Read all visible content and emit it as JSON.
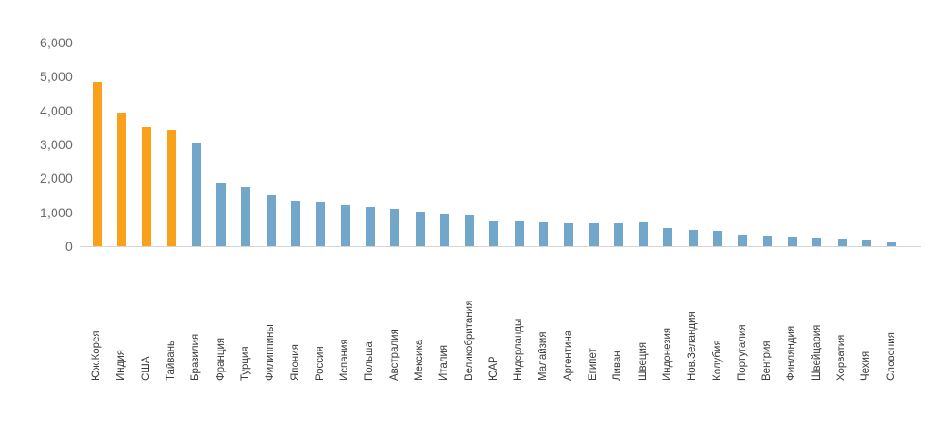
{
  "chart_data": {
    "type": "bar",
    "title": "",
    "xlabel": "",
    "ylabel": "",
    "categories": [
      "Юж.Корея",
      "Индия",
      "США",
      "Тайвань",
      "Бразилия",
      "Франция",
      "Турция",
      "Филиппины",
      "Япония",
      "Россия",
      "Испания",
      "Польша",
      "Австралия",
      "Мексика",
      "Италия",
      "Великобритания",
      "ЮАР",
      "Нидерланды",
      "Малайзия",
      "Аргентина",
      "Египет",
      "Ливан",
      "Швеция",
      "Индонезия",
      "Нов.Зеландия",
      "Колубия",
      "Португалия",
      "Венгрия",
      "Финляндия",
      "Швейцария",
      "Хорватия",
      "Чехия",
      "Словения"
    ],
    "values": [
      4850,
      3950,
      3500,
      3430,
      3060,
      1840,
      1730,
      1500,
      1330,
      1300,
      1210,
      1150,
      1100,
      1020,
      950,
      900,
      740,
      740,
      700,
      670,
      680,
      660,
      700,
      530,
      470,
      450,
      310,
      290,
      270,
      250,
      210,
      200,
      110
    ],
    "highlighted_categories": [
      "Юж.Корея",
      "Индия",
      "США",
      "Тайвань"
    ],
    "highlight_count": 4,
    "colors": {
      "highlight": "#F9A11B",
      "default": "#72A7CB",
      "axis_line": "#D4D4D4",
      "tick_text": "#6B6B6B",
      "label_text": "#3D3D3D"
    },
    "ylim": [
      0,
      6000
    ],
    "y_ticks": [
      {
        "value": 0,
        "label": "0"
      },
      {
        "value": 1000,
        "label": "1,000"
      },
      {
        "value": 2000,
        "label": "2,000"
      },
      {
        "value": 3000,
        "label": "3,000"
      },
      {
        "value": 4000,
        "label": "4,000"
      },
      {
        "value": 5000,
        "label": "5,000"
      },
      {
        "value": 6000,
        "label": "6,000"
      }
    ],
    "grid": false,
    "legend": false,
    "bar_orientation": "vertical",
    "x_label_rotation_degrees": 90
  }
}
